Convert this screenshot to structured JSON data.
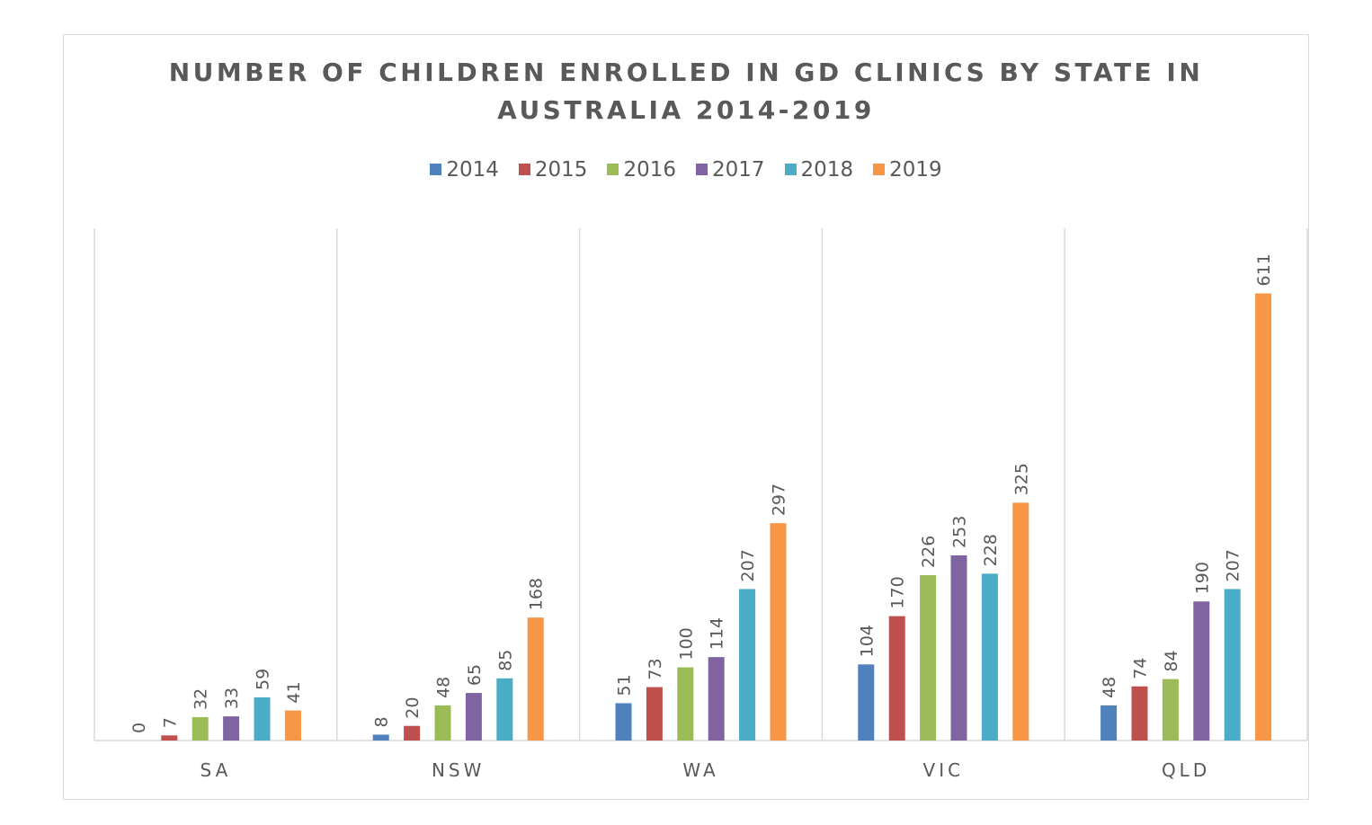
{
  "chart_data": {
    "type": "bar",
    "title_lines": [
      "NUMBER OF CHILDREN ENROLLED IN GD CLINICS BY STATE IN",
      "AUSTRALIA 2014-2019"
    ],
    "categories": [
      "SA",
      "NSW",
      "WA",
      "VIC",
      "QLD"
    ],
    "series": [
      {
        "name": "2014",
        "color": "#4f81bd",
        "values": [
          0,
          8,
          51,
          104,
          48
        ]
      },
      {
        "name": "2015",
        "color": "#c0504d",
        "values": [
          7,
          20,
          73,
          170,
          74
        ]
      },
      {
        "name": "2016",
        "color": "#9bbb59",
        "values": [
          32,
          48,
          100,
          226,
          84
        ]
      },
      {
        "name": "2017",
        "color": "#8064a2",
        "values": [
          33,
          65,
          114,
          253,
          190
        ]
      },
      {
        "name": "2018",
        "color": "#4bacc6",
        "values": [
          59,
          85,
          207,
          228,
          207
        ]
      },
      {
        "name": "2019",
        "color": "#f79646",
        "values": [
          41,
          168,
          297,
          325,
          611
        ]
      }
    ],
    "ylim": [
      0,
      700
    ],
    "grid": "vertical category separators",
    "legend_position": "top",
    "data_labels": true,
    "xlabel": "",
    "ylabel": ""
  }
}
